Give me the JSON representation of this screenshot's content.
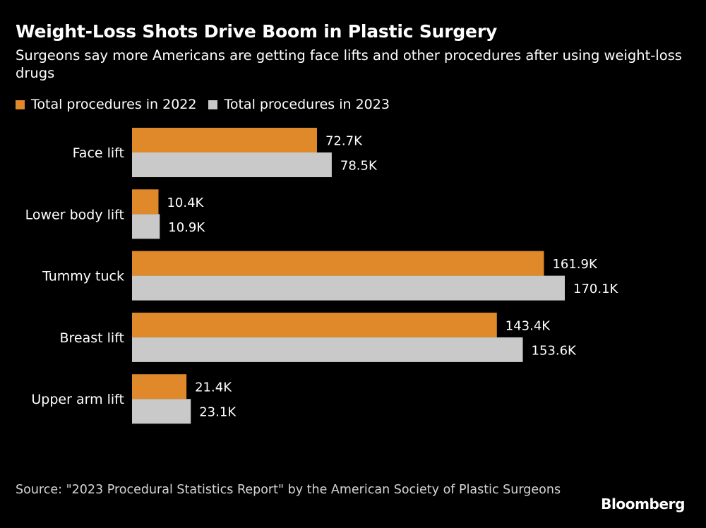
{
  "header": {
    "title": "Weight-Loss Shots Drive Boom in Plastic Surgery",
    "subtitle": "Surgeons say more Americans are getting face lifts and other procedures after using weight-loss drugs"
  },
  "legend": [
    {
      "label": "Total procedures in 2022",
      "color": "#E0892A"
    },
    {
      "label": "Total procedures in 2023",
      "color": "#C9C9C9"
    }
  ],
  "chart_data": {
    "type": "bar",
    "orientation": "horizontal",
    "categories": [
      "Face lift",
      "Lower body lift",
      "Tummy tuck",
      "Breast lift",
      "Upper arm lift"
    ],
    "series": [
      {
        "name": "Total procedures in 2022",
        "color": "#E0892A",
        "values": [
          72.7,
          10.4,
          161.9,
          143.4,
          21.4
        ],
        "labels": [
          "72.7K",
          "10.4K",
          "161.9K",
          "143.4K",
          "21.4K"
        ]
      },
      {
        "name": "Total procedures in 2023",
        "color": "#C9C9C9",
        "values": [
          78.5,
          10.9,
          170.1,
          153.6,
          23.1
        ],
        "labels": [
          "78.5K",
          "10.9K",
          "170.1K",
          "153.6K",
          "23.1K"
        ]
      }
    ],
    "xlim": [
      0,
      170.1
    ],
    "grid": false,
    "legend_position": "top-left"
  },
  "footer": {
    "source": "Source: \"2023 Procedural Statistics Report\" by the American Society of Plastic Surgeons",
    "logo": "Bloomberg"
  }
}
